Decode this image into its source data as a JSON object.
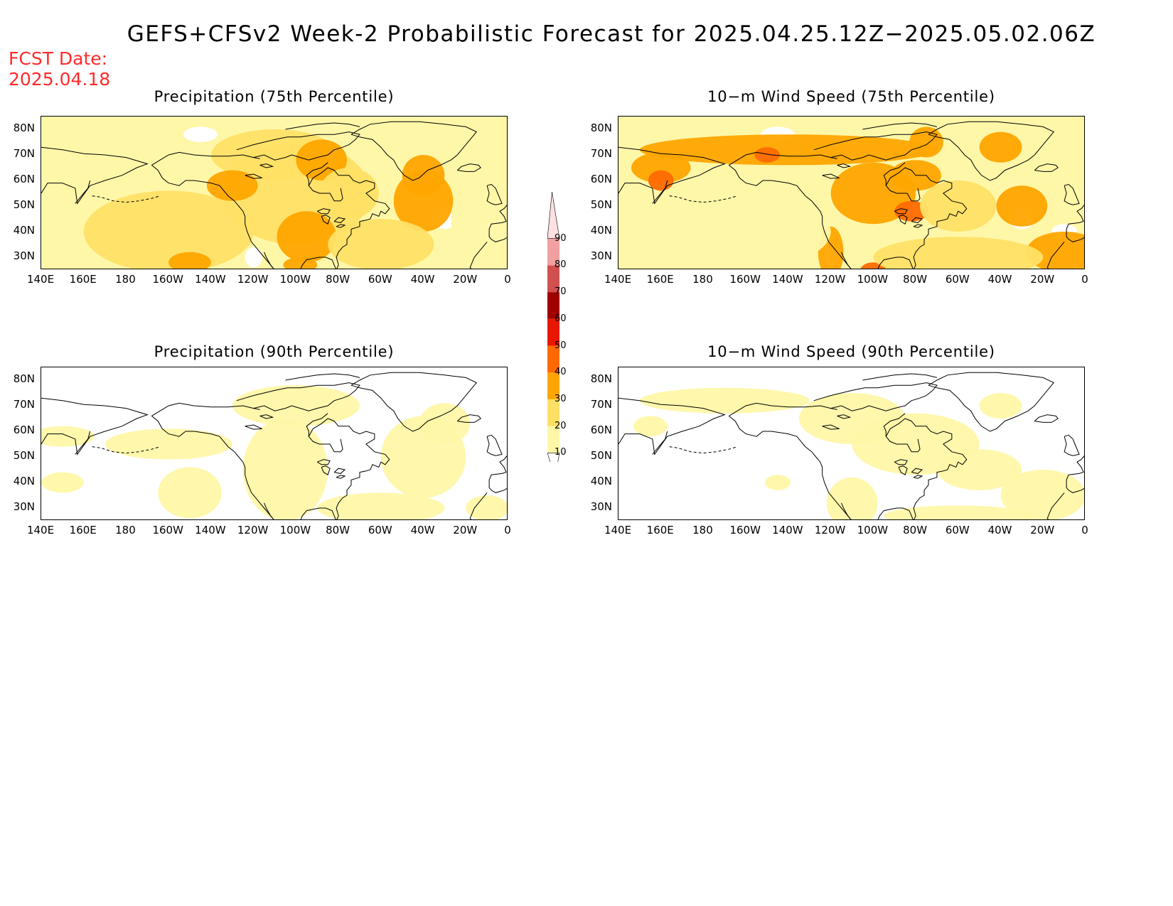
{
  "title": "GEFS+CFSv2 Week-2 Probabilistic Forecast for 2025.04.25.12Z−2025.05.02.06Z",
  "fcst_date": {
    "label": "FCST Date:",
    "value": "2025.04.18"
  },
  "panels": [
    {
      "id": "precip75",
      "title": "Precipitation (75th Percentile)",
      "intensity": "high"
    },
    {
      "id": "wind75",
      "title": "10−m Wind Speed (75th Percentile)",
      "intensity": "high"
    },
    {
      "id": "precip90",
      "title": "Precipitation (90th Percentile)",
      "intensity": "low"
    },
    {
      "id": "wind90",
      "title": "10−m Wind Speed (90th Percentile)",
      "intensity": "low"
    }
  ],
  "lat_labels": [
    "80N",
    "70N",
    "60N",
    "50N",
    "40N",
    "30N"
  ],
  "lon_labels": [
    "140E",
    "160E",
    "180",
    "160W",
    "140W",
    "120W",
    "100W",
    "80W",
    "60W",
    "40W",
    "20W",
    "0"
  ],
  "colorbar": {
    "levels": [
      "10",
      "20",
      "30",
      "40",
      "50",
      "60",
      "70",
      "80",
      "90"
    ],
    "colors": [
      "#fff7a8",
      "#ffe066",
      "#ffa500",
      "#ff6a00",
      "#e81800",
      "#a00000",
      "#d05050",
      "#f0a0a0",
      "#ffe0e0"
    ]
  },
  "colors": {
    "title": "#000000",
    "fcst_date": "#ff2b2b",
    "coast": "#000000"
  }
}
